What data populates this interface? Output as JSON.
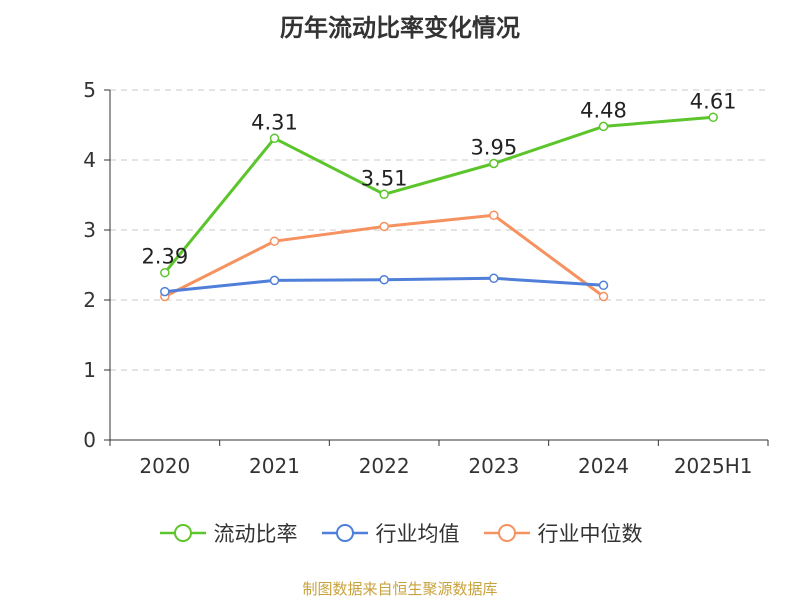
{
  "chart_data": {
    "type": "line",
    "title": "历年流动比率变化情况",
    "categories": [
      "2020",
      "2021",
      "2022",
      "2023",
      "2024",
      "2025H1"
    ],
    "ylim": [
      0,
      5
    ],
    "yticks": [
      "0",
      "1",
      "2",
      "3",
      "4",
      "5"
    ],
    "grid": true,
    "legend_position": "bottom",
    "series": [
      {
        "name": "流动比率",
        "color": "#5cc52c",
        "values": [
          2.39,
          4.31,
          3.51,
          3.95,
          4.48,
          4.61
        ],
        "labels": [
          "2.39",
          "4.31",
          "3.51",
          "3.95",
          "4.48",
          "4.61"
        ]
      },
      {
        "name": "行业均值",
        "color": "#4f7fd9",
        "values": [
          2.12,
          2.28,
          2.29,
          2.31,
          2.21,
          null
        ]
      },
      {
        "name": "行业中位数",
        "color": "#f69160",
        "values": [
          2.05,
          2.84,
          3.05,
          3.21,
          2.05,
          null
        ]
      }
    ]
  },
  "source": "制图数据来自恒生聚源数据库"
}
